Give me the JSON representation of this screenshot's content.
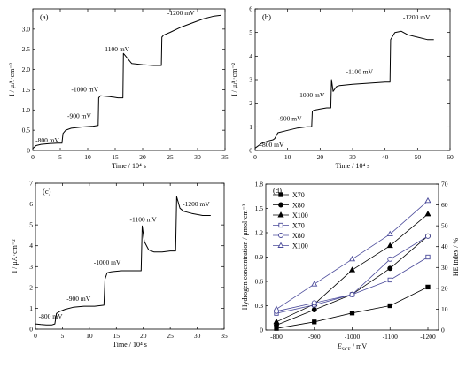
{
  "colors": {
    "axis": "#000000",
    "series_black": "#000000",
    "series_blue": "#4a4a9a",
    "right_axis": "#3b3b8f"
  },
  "chart_data": [
    {
      "type": "line",
      "panel_label": "(a)",
      "xlabel": "Time / 10⁴ s",
      "ylabel": "I / μA·cm⁻²",
      "xlim": [
        0,
        35
      ],
      "ylim": [
        0,
        3.5
      ],
      "xticks": [
        0,
        5,
        10,
        15,
        20,
        25,
        30,
        35
      ],
      "yticks": [
        0,
        0.5,
        1.0,
        1.5,
        2.0,
        2.5,
        3.0
      ],
      "ytick_labels": [
        "0",
        "0.5",
        "1.0",
        "1.5",
        "2.0",
        "2.5",
        "3.0"
      ],
      "series": [
        {
          "x": [
            0,
            0.6,
            1.5,
            3,
            4.5,
            5.3,
            5.5,
            6,
            7,
            9,
            11,
            11.9,
            12.0,
            12.3,
            14,
            15.5,
            16.4,
            16.5,
            16.8,
            18,
            20,
            22,
            23.4,
            23.5,
            23.8,
            25,
            27,
            29,
            31,
            33,
            34.3
          ],
          "y": [
            0.05,
            0.12,
            0.15,
            0.17,
            0.18,
            0.18,
            0.42,
            0.5,
            0.55,
            0.58,
            0.6,
            0.62,
            1.3,
            1.35,
            1.33,
            1.3,
            1.3,
            2.4,
            2.35,
            2.15,
            2.12,
            2.1,
            2.1,
            2.8,
            2.85,
            2.92,
            3.05,
            3.15,
            3.25,
            3.32,
            3.34
          ]
        }
      ],
      "annotations": [
        {
          "text": "-800 mV",
          "x": 0.5,
          "y": 0.2
        },
        {
          "text": "-900 mV",
          "x": 6.3,
          "y": 0.8
        },
        {
          "text": "-1000 mV",
          "x": 7.0,
          "y": 1.45
        },
        {
          "text": "-1100 mV",
          "x": 12.7,
          "y": 2.45
        },
        {
          "text": "-1200 mV",
          "x": 24.5,
          "y": 3.35
        }
      ]
    },
    {
      "type": "line",
      "panel_label": "(b)",
      "xlabel": "Time / 10⁴ s",
      "ylabel": "I / μA·cm⁻²",
      "xlim": [
        0,
        60
      ],
      "ylim": [
        0,
        6
      ],
      "xticks": [
        0,
        10,
        20,
        30,
        40,
        50,
        60
      ],
      "yticks": [
        0,
        1,
        2,
        3,
        4,
        5,
        6
      ],
      "series": [
        {
          "x": [
            0,
            2,
            4,
            5.5,
            6,
            7,
            10,
            13,
            16,
            17.4,
            17.6,
            18,
            20,
            22,
            23.3,
            23.5,
            24,
            25,
            26,
            30,
            35,
            40,
            41.5,
            41.7,
            43,
            45,
            47,
            50,
            53,
            55
          ],
          "y": [
            0.1,
            0.3,
            0.4,
            0.45,
            0.5,
            0.75,
            0.85,
            0.95,
            1.0,
            1.0,
            1.65,
            1.7,
            1.75,
            1.8,
            1.8,
            3.0,
            2.5,
            2.7,
            2.75,
            2.8,
            2.85,
            2.9,
            2.9,
            4.7,
            5.0,
            5.05,
            4.9,
            4.8,
            4.7,
            4.7
          ]
        }
      ],
      "annotations": [
        {
          "text": "-800 mV",
          "x": 1.5,
          "y": 0.15
        },
        {
          "text": "-900 mV",
          "x": 7.0,
          "y": 1.25
        },
        {
          "text": "-1000 mV",
          "x": 13.0,
          "y": 2.25
        },
        {
          "text": "-1100 mV",
          "x": 28.0,
          "y": 3.25
        },
        {
          "text": "-1200 mV",
          "x": 45.5,
          "y": 5.55
        }
      ]
    },
    {
      "type": "line",
      "panel_label": "(c)",
      "xlabel": "Time / 10⁴ s",
      "ylabel": "I / μA·cm⁻²",
      "xlim": [
        0,
        35
      ],
      "ylim": [
        0,
        7
      ],
      "xticks": [
        0,
        5,
        10,
        15,
        20,
        25,
        30,
        35
      ],
      "yticks": [
        0,
        1,
        2,
        3,
        4,
        5,
        6,
        7
      ],
      "series": [
        {
          "x": [
            0,
            1,
            2,
            3,
            3.6,
            3.9,
            4.5,
            5.5,
            7,
            9,
            11,
            12.7,
            12.9,
            13.3,
            14,
            16,
            18,
            19.6,
            19.8,
            20.2,
            21,
            22,
            23.5,
            25,
            26,
            26.2,
            26.8,
            27.5,
            29,
            31,
            32.5
          ],
          "y": [
            0.25,
            0.22,
            0.2,
            0.2,
            0.25,
            0.75,
            0.85,
            0.95,
            1.05,
            1.1,
            1.1,
            1.15,
            2.4,
            2.7,
            2.75,
            2.8,
            2.8,
            2.8,
            4.95,
            4.2,
            3.8,
            3.7,
            3.7,
            3.75,
            3.75,
            6.35,
            5.8,
            5.65,
            5.55,
            5.45,
            5.45
          ]
        }
      ],
      "annotations": [
        {
          "text": "-800 mV",
          "x": 0.6,
          "y": 0.5
        },
        {
          "text": "-900 mV",
          "x": 5.8,
          "y": 1.35
        },
        {
          "text": "-1000 mV",
          "x": 10.8,
          "y": 3.1
        },
        {
          "text": "-1100 mV",
          "x": 17.5,
          "y": 5.15
        },
        {
          "text": "-1200 mV",
          "x": 27.3,
          "y": 5.9
        }
      ]
    },
    {
      "type": "line",
      "panel_label": "(d)",
      "xlabel": "E_SCE / mV",
      "ylabel": "Hydrogen concentration / μmol·cm⁻³",
      "y2label": "HE index / %",
      "categories": [
        "-800",
        "-900",
        "-1000",
        "-1100",
        "-1200"
      ],
      "ylim": [
        0,
        1.8
      ],
      "yticks": [
        0,
        0.3,
        0.6,
        0.9,
        1.2,
        1.5,
        1.8
      ],
      "ytick_labels": [
        "0",
        "0.3",
        "0.6",
        "0.9",
        "1.2",
        "1.5",
        "1.8"
      ],
      "y2lim": [
        0,
        70
      ],
      "y2ticks": [
        0,
        10,
        20,
        30,
        40,
        50,
        60,
        70
      ],
      "legend_position": "top-left",
      "series": [
        {
          "name": "X70",
          "axis": "left",
          "marker": "square-filled",
          "values": [
            0.02,
            0.1,
            0.21,
            0.3,
            0.53
          ]
        },
        {
          "name": "X80",
          "axis": "left",
          "marker": "circle-filled",
          "values": [
            0.06,
            0.25,
            0.44,
            0.76,
            1.16
          ]
        },
        {
          "name": "X100",
          "axis": "left",
          "marker": "triangle-filled",
          "values": [
            0.1,
            0.32,
            0.74,
            1.04,
            1.43
          ]
        },
        {
          "name": "X70",
          "axis": "right",
          "marker": "square-open",
          "values": [
            8,
            12,
            17,
            24,
            35
          ]
        },
        {
          "name": "X80",
          "axis": "right",
          "marker": "circle-open",
          "values": [
            9,
            13,
            17,
            34,
            45
          ]
        },
        {
          "name": "X100",
          "axis": "right",
          "marker": "triangle-open",
          "values": [
            10,
            22,
            34,
            46,
            62
          ]
        }
      ]
    }
  ]
}
